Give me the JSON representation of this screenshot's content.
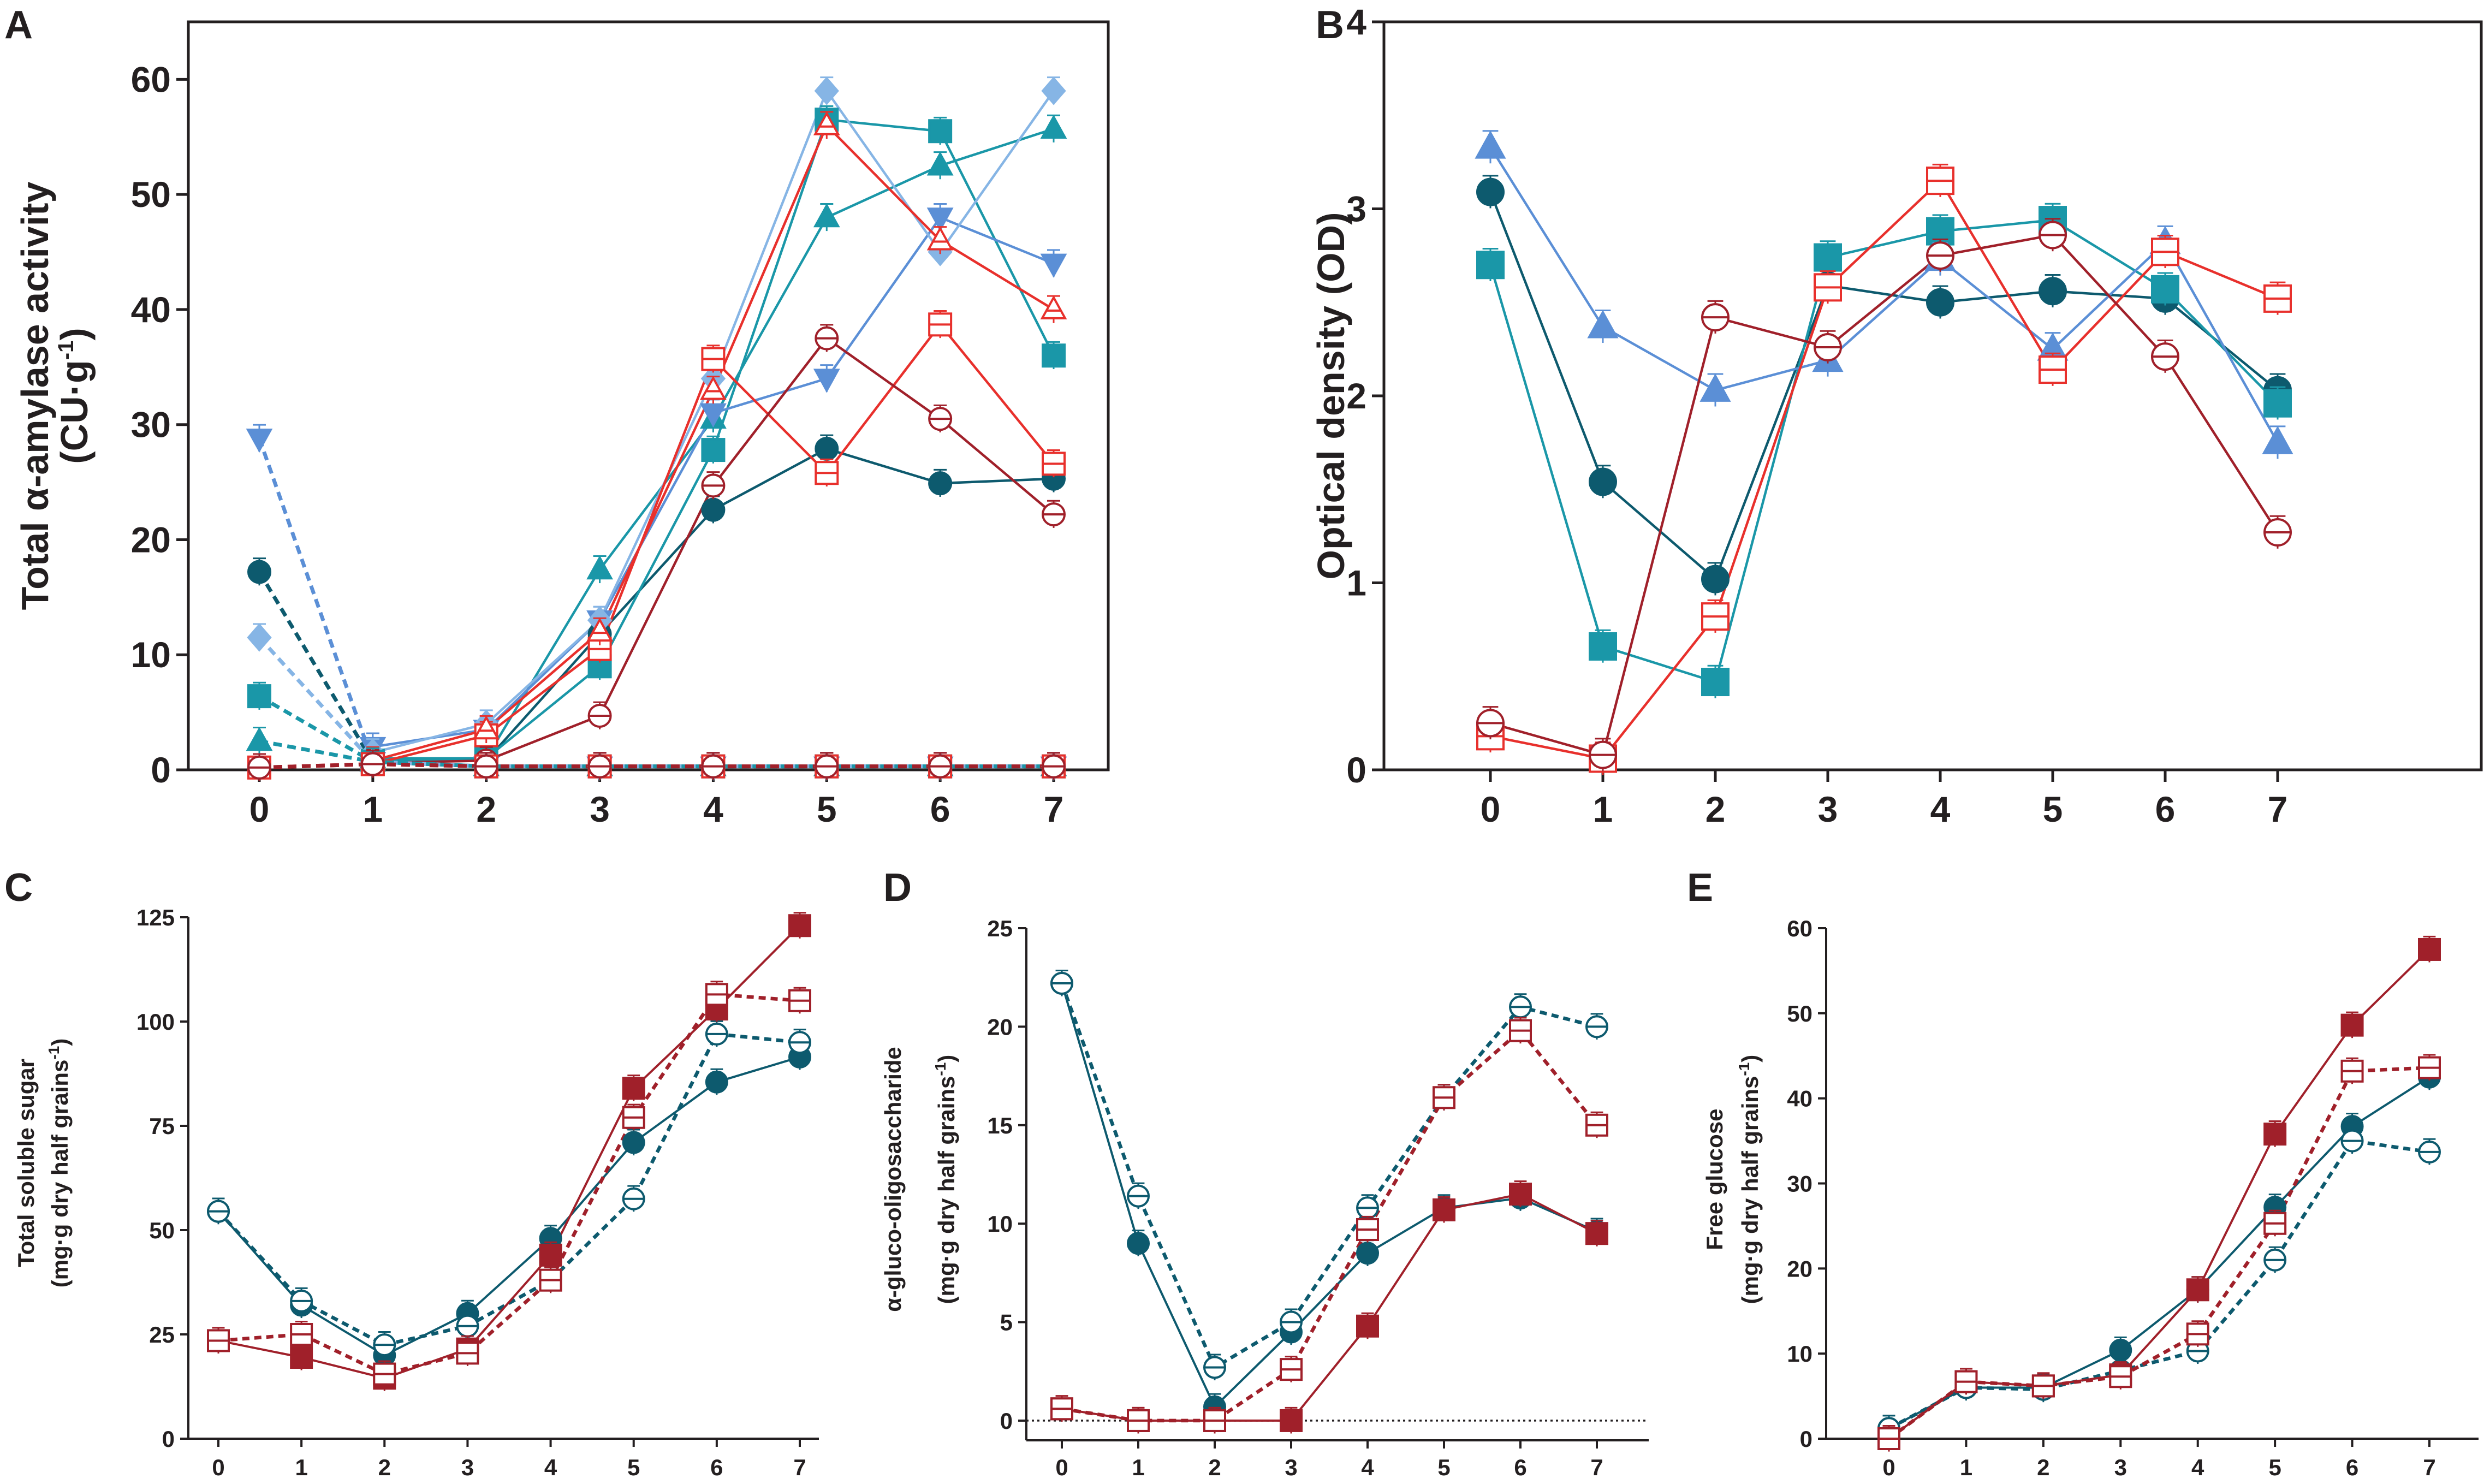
{
  "colors": {
    "navy": "#0d5a6e",
    "teal": "#1a97a8",
    "blue": "#5b8fd6",
    "lightblue": "#86b5e5",
    "red": "#e8302c",
    "darkred": "#a0202a",
    "black": "#231f20"
  },
  "chart_data": [
    {
      "panel": "A",
      "type": "line",
      "ylabel": "Total α-amylase activity",
      "ylabel_unit": "(CU·g",
      "ylabel_unit_sup": "-1",
      "ylabel_unit_end": ")",
      "ylim": [
        0,
        65
      ],
      "yticks": [
        "0",
        "10",
        "20",
        "30",
        "40",
        "50",
        "60"
      ],
      "categories": [
        "0",
        "1",
        "2",
        "3",
        "4",
        "5",
        "6",
        "7"
      ],
      "series": [
        {
          "name": "navy-circle-solid",
          "color": "navy",
          "marker": "circle",
          "fill": "solid",
          "dash": false,
          "values": [
            null,
            1.0,
            0.8,
            11.8,
            22.6,
            27.9,
            24.9,
            25.3
          ]
        },
        {
          "name": "teal-square-solid",
          "color": "teal",
          "marker": "square",
          "fill": "solid",
          "dash": false,
          "values": [
            null,
            0.8,
            1.0,
            9.0,
            27.8,
            56.5,
            55.5,
            36.0
          ]
        },
        {
          "name": "teal-triangle-solid",
          "color": "teal",
          "marker": "triangle-up",
          "fill": "solid",
          "dash": false,
          "values": [
            null,
            1.0,
            1.0,
            17.4,
            30.5,
            48.0,
            52.5,
            55.7
          ]
        },
        {
          "name": "blue-triangle-down-solid",
          "color": "blue",
          "marker": "triangle-down",
          "fill": "solid",
          "dash": false,
          "values": [
            null,
            2.0,
            3.5,
            13.0,
            31.0,
            34.0,
            48.0,
            44.0
          ]
        },
        {
          "name": "lightblue-diamond-solid",
          "color": "lightblue",
          "marker": "diamond",
          "fill": "solid",
          "dash": false,
          "values": [
            null,
            1.5,
            4.0,
            13.0,
            34.0,
            59.0,
            45.0,
            59.0
          ]
        },
        {
          "name": "red-square-open",
          "color": "red",
          "marker": "square",
          "fill": "open",
          "dash": false,
          "values": [
            null,
            0.5,
            3.0,
            10.5,
            35.7,
            25.8,
            38.7,
            26.6
          ]
        },
        {
          "name": "red-triangle-open",
          "color": "red",
          "marker": "triangle-up",
          "fill": "open",
          "dash": false,
          "values": [
            null,
            0.8,
            3.5,
            12.0,
            33.0,
            56.0,
            46.0,
            40.0
          ]
        },
        {
          "name": "darkred-circle-open",
          "color": "darkred",
          "marker": "circle",
          "fill": "open",
          "dash": false,
          "values": [
            null,
            0.6,
            0.8,
            4.7,
            24.7,
            37.5,
            30.5,
            22.2
          ]
        },
        {
          "name": "navy-circle-dashed",
          "color": "navy",
          "marker": "circle",
          "fill": "solid",
          "dash": true,
          "values": [
            17.2,
            0.7,
            0.3,
            0.3,
            0.3,
            0.3,
            0.3,
            0.3
          ]
        },
        {
          "name": "blue-triangle-down-dashed",
          "color": "blue",
          "marker": "triangle-down",
          "fill": "solid",
          "dash": true,
          "values": [
            28.8,
            0.7,
            0.3,
            0.3,
            0.3,
            0.3,
            0.3,
            0.3
          ]
        },
        {
          "name": "lightblue-diamond-dashed",
          "color": "lightblue",
          "marker": "diamond",
          "fill": "solid",
          "dash": true,
          "values": [
            11.5,
            0.7,
            0.3,
            0.3,
            0.3,
            0.3,
            0.3,
            0.3
          ]
        },
        {
          "name": "teal-square-dashed",
          "color": "teal",
          "marker": "square",
          "fill": "solid",
          "dash": true,
          "values": [
            6.4,
            0.7,
            0.3,
            0.3,
            0.3,
            0.3,
            0.3,
            0.3
          ]
        },
        {
          "name": "teal-triangle-dashed",
          "color": "teal",
          "marker": "triangle-up",
          "fill": "solid",
          "dash": true,
          "values": [
            2.5,
            0.7,
            0.3,
            0.3,
            0.3,
            0.3,
            0.3,
            0.3
          ]
        },
        {
          "name": "red-square-dashed",
          "color": "red",
          "marker": "square",
          "fill": "open",
          "dash": true,
          "values": [
            0.2,
            0.5,
            0.3,
            0.3,
            0.3,
            0.3,
            0.3,
            0.3
          ]
        },
        {
          "name": "darkred-circle-dashed",
          "color": "darkred",
          "marker": "circle",
          "fill": "open",
          "dash": true,
          "values": [
            0.2,
            0.5,
            0.3,
            0.3,
            0.3,
            0.3,
            0.3,
            0.3
          ]
        }
      ]
    },
    {
      "panel": "B",
      "type": "line",
      "ylabel": "Optical  density  (OD)",
      "ylim": [
        0,
        4
      ],
      "yticks": [
        "0",
        "1",
        "2",
        "3",
        "4"
      ],
      "categories": [
        "0",
        "1",
        "2",
        "3",
        "4",
        "5",
        "6",
        "7"
      ],
      "series": [
        {
          "name": "navy-circle",
          "color": "navy",
          "marker": "circle",
          "fill": "solid",
          "dash": false,
          "values": [
            3.09,
            1.54,
            1.02,
            2.59,
            2.5,
            2.56,
            2.52,
            2.03
          ]
        },
        {
          "name": "teal-square",
          "color": "teal",
          "marker": "square",
          "fill": "solid",
          "dash": false,
          "values": [
            2.7,
            0.66,
            0.47,
            2.74,
            2.88,
            2.94,
            2.57,
            1.96
          ]
        },
        {
          "name": "blue-triangle",
          "color": "blue",
          "marker": "triangle-up",
          "fill": "solid",
          "dash": false,
          "values": [
            3.33,
            2.37,
            2.03,
            2.19,
            2.73,
            2.25,
            2.82,
            1.75
          ]
        },
        {
          "name": "red-square-open",
          "color": "red",
          "marker": "square",
          "fill": "open",
          "dash": false,
          "values": [
            0.18,
            0.06,
            0.82,
            2.58,
            3.15,
            2.14,
            2.77,
            2.52
          ]
        },
        {
          "name": "darkred-circle-open",
          "color": "darkred",
          "marker": "circle",
          "fill": "open",
          "dash": false,
          "values": [
            0.25,
            0.08,
            2.42,
            2.26,
            2.75,
            2.86,
            2.21,
            1.27
          ]
        }
      ]
    },
    {
      "panel": "C",
      "type": "line",
      "ylabel": "Total soluble sugar",
      "ylabel2": "(mg·g dry half grains",
      "ylabel2_sup": "-1",
      "ylabel2_end": ")",
      "ylim": [
        0,
        125
      ],
      "yticks": [
        "0",
        "25",
        "50",
        "75",
        "100",
        "125"
      ],
      "categories": [
        "0",
        "1",
        "2",
        "3",
        "4",
        "5",
        "6",
        "7"
      ],
      "series": [
        {
          "name": "navy-circle-solid",
          "color": "navy",
          "marker": "circle",
          "fill": "solid",
          "dash": false,
          "values": [
            54.5,
            32.0,
            20.0,
            30.0,
            48.0,
            71.0,
            85.5,
            91.5
          ]
        },
        {
          "name": "navy-circle-dashed",
          "color": "navy",
          "marker": "circle",
          "fill": "open",
          "dash": true,
          "values": [
            54.5,
            33.0,
            22.5,
            27.0,
            38.0,
            57.5,
            97.0,
            95.0
          ]
        },
        {
          "name": "darkred-square-solid",
          "color": "darkred",
          "marker": "square",
          "fill": "solid",
          "dash": false,
          "values": [
            23.5,
            19.5,
            14.5,
            21.5,
            44.0,
            84.0,
            103.0,
            123.0
          ]
        },
        {
          "name": "darkred-square-dashed",
          "color": "darkred",
          "marker": "square",
          "fill": "open",
          "dash": true,
          "values": [
            23.5,
            25.0,
            15.5,
            20.5,
            38.0,
            77.0,
            106.5,
            105.0
          ]
        }
      ]
    },
    {
      "panel": "D",
      "type": "line",
      "ylabel": "α-gluco-oligosaccharide",
      "ylabel2": "(mg·g dry half grains",
      "ylabel2_sup": "-1",
      "ylabel2_end": ")",
      "ylim": [
        -1,
        25
      ],
      "yticks": [
        "0",
        "5",
        "10",
        "15",
        "20",
        "25"
      ],
      "categories": [
        "0",
        "1",
        "2",
        "3",
        "4",
        "5",
        "6",
        "7"
      ],
      "series": [
        {
          "name": "navy-circle-solid",
          "color": "navy",
          "marker": "circle",
          "fill": "solid",
          "dash": false,
          "values": [
            22.2,
            9.0,
            0.7,
            4.5,
            8.5,
            10.8,
            11.3,
            9.6
          ]
        },
        {
          "name": "navy-circle-dashed",
          "color": "navy",
          "marker": "circle",
          "fill": "open",
          "dash": true,
          "values": [
            22.2,
            11.4,
            2.7,
            5.0,
            10.8,
            16.4,
            21.0,
            20.0
          ]
        },
        {
          "name": "darkred-square-solid",
          "color": "darkred",
          "marker": "square",
          "fill": "solid",
          "dash": false,
          "values": [
            0.6,
            0.0,
            0.0,
            0.0,
            4.8,
            10.7,
            11.5,
            9.5
          ]
        },
        {
          "name": "darkred-square-dashed",
          "color": "darkred",
          "marker": "square",
          "fill": "open",
          "dash": true,
          "values": [
            0.6,
            0.0,
            0.0,
            2.6,
            9.7,
            16.4,
            19.8,
            15.0
          ]
        }
      ]
    },
    {
      "panel": "E",
      "type": "line",
      "ylabel": "Free glucose",
      "ylabel2": "(mg·g dry half grains",
      "ylabel2_sup": "-1",
      "ylabel2_end": ")",
      "ylim": [
        0,
        60
      ],
      "yticks": [
        "0",
        "10",
        "20",
        "30",
        "40",
        "50",
        "60"
      ],
      "categories": [
        "0",
        "1",
        "2",
        "3",
        "4",
        "5",
        "6",
        "7"
      ],
      "series": [
        {
          "name": "navy-circle-solid",
          "color": "navy",
          "marker": "circle",
          "fill": "solid",
          "dash": false,
          "values": [
            1.2,
            6.0,
            6.0,
            10.4,
            17.5,
            27.2,
            36.7,
            42.5
          ]
        },
        {
          "name": "navy-circle-dashed",
          "color": "navy",
          "marker": "circle",
          "fill": "open",
          "dash": true,
          "values": [
            1.2,
            6.0,
            5.8,
            8.0,
            10.3,
            21.0,
            35.0,
            33.7
          ]
        },
        {
          "name": "darkred-square-solid",
          "color": "darkred",
          "marker": "square",
          "fill": "solid",
          "dash": false,
          "values": [
            0.0,
            6.7,
            6.2,
            7.5,
            17.5,
            35.8,
            48.6,
            57.5
          ]
        },
        {
          "name": "darkred-square-dashed",
          "color": "darkred",
          "marker": "square",
          "fill": "open",
          "dash": true,
          "values": [
            0.0,
            6.7,
            6.2,
            7.3,
            12.3,
            25.3,
            43.2,
            43.6
          ]
        }
      ]
    }
  ]
}
